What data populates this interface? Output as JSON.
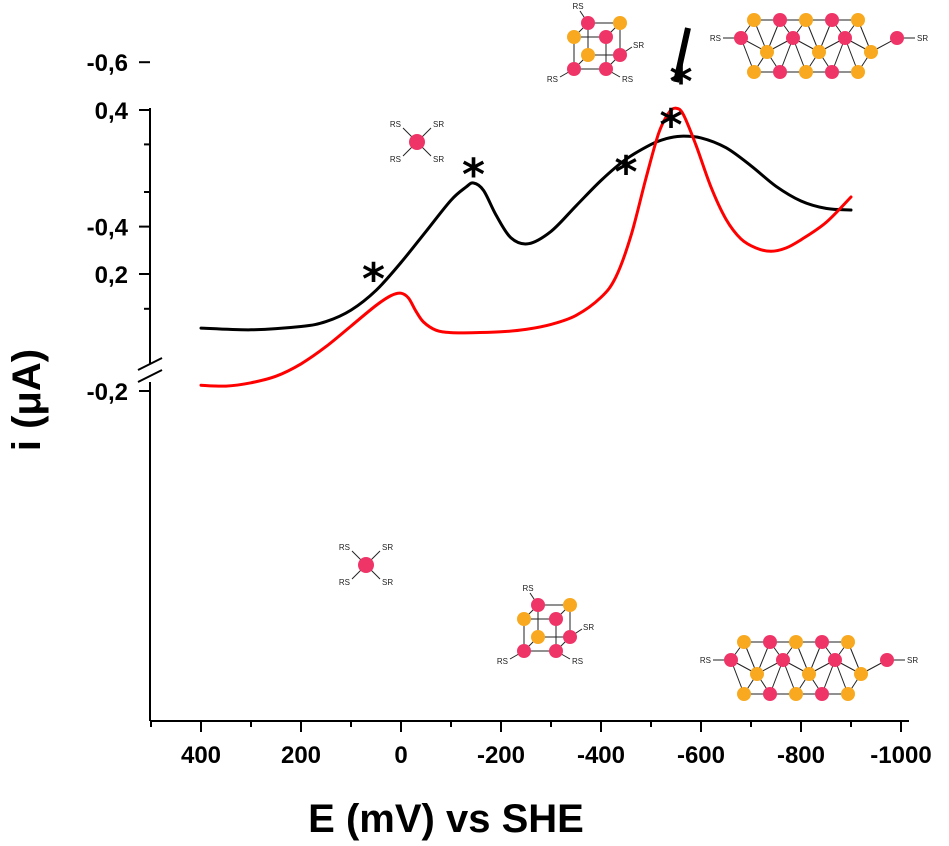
{
  "chart_data": {
    "type": "line",
    "xlabel": "E (mV) vs SHE",
    "ylabel": "i (μA)",
    "xlim": [
      500,
      -1000
    ],
    "x_axis_reversed": true,
    "x_ticks": [
      400,
      200,
      0,
      -200,
      -400,
      -600,
      -800,
      -1000
    ],
    "x_tick_labels": [
      "400",
      "200",
      "0",
      "-200",
      "-400",
      "-600",
      "-800",
      "-1000"
    ],
    "y_axis_break": true,
    "y_upper_segment": {
      "ticks": [
        0.2,
        0.4
      ],
      "tick_labels": [
        "0,2",
        "0,4"
      ]
    },
    "y_lower_segment": {
      "ticks": [
        -0.2,
        -0.4,
        -0.6
      ],
      "tick_labels": [
        "-0,2",
        "-0,4",
        "-0,6"
      ]
    },
    "grid": false,
    "legend": "none",
    "series": [
      {
        "color": "#000000",
        "segment": "upper",
        "x": [
          400,
          300,
          200,
          150,
          100,
          50,
          0,
          -50,
          -100,
          -130,
          -145,
          -165,
          -190,
          -220,
          -255,
          -300,
          -350,
          -400,
          -450,
          -500,
          -530,
          -560,
          -600,
          -650,
          -700,
          -750,
          -800,
          -850,
          -900
        ],
        "y": [
          0.134,
          0.132,
          0.136,
          0.142,
          0.156,
          0.18,
          0.214,
          0.252,
          0.29,
          0.306,
          0.311,
          0.302,
          0.272,
          0.244,
          0.237,
          0.252,
          0.283,
          0.314,
          0.34,
          0.358,
          0.365,
          0.368,
          0.366,
          0.354,
          0.332,
          0.307,
          0.289,
          0.28,
          0.278
        ]
      },
      {
        "color": "#ff0000",
        "segment": "lower",
        "x": [
          400,
          350,
          300,
          250,
          200,
          150,
          100,
          50,
          20,
          0,
          -15,
          -30,
          -45,
          -70,
          -100,
          -150,
          -200,
          -250,
          -300,
          -350,
          -400,
          -430,
          -460,
          -490,
          -515,
          -535,
          -550,
          -565,
          -590,
          -620,
          -650,
          -680,
          -710,
          -740,
          -770,
          -800,
          -850,
          -900
        ],
        "y": [
          -0.207,
          -0.206,
          -0.21,
          -0.218,
          -0.233,
          -0.254,
          -0.279,
          -0.304,
          -0.316,
          -0.319,
          -0.313,
          -0.297,
          -0.284,
          -0.274,
          -0.271,
          -0.271,
          -0.272,
          -0.275,
          -0.281,
          -0.292,
          -0.314,
          -0.339,
          -0.389,
          -0.459,
          -0.513,
          -0.538,
          -0.544,
          -0.536,
          -0.499,
          -0.448,
          -0.409,
          -0.385,
          -0.374,
          -0.37,
          -0.374,
          -0.384,
          -0.405,
          -0.436
        ]
      }
    ],
    "annotations": [
      {
        "text": "*",
        "x": -145,
        "segment": "upper",
        "y": 0.33
      },
      {
        "text": "*",
        "x": -540,
        "segment": "upper",
        "y": 0.39
      },
      {
        "text": "*",
        "x": 55,
        "segment": "lower",
        "y": -0.345
      },
      {
        "text": "*",
        "x": -450,
        "segment": "lower",
        "y": -0.475
      },
      {
        "text": "*",
        "x": -560,
        "segment": "lower",
        "y": -0.585
      }
    ],
    "molecule_labels": {
      "rs": "RS",
      "sr": "SR"
    }
  },
  "colors": {
    "metal": "#ef3567",
    "sulfur": "#f8a91f",
    "black_series": "#000000",
    "red_series": "#ff0000"
  }
}
